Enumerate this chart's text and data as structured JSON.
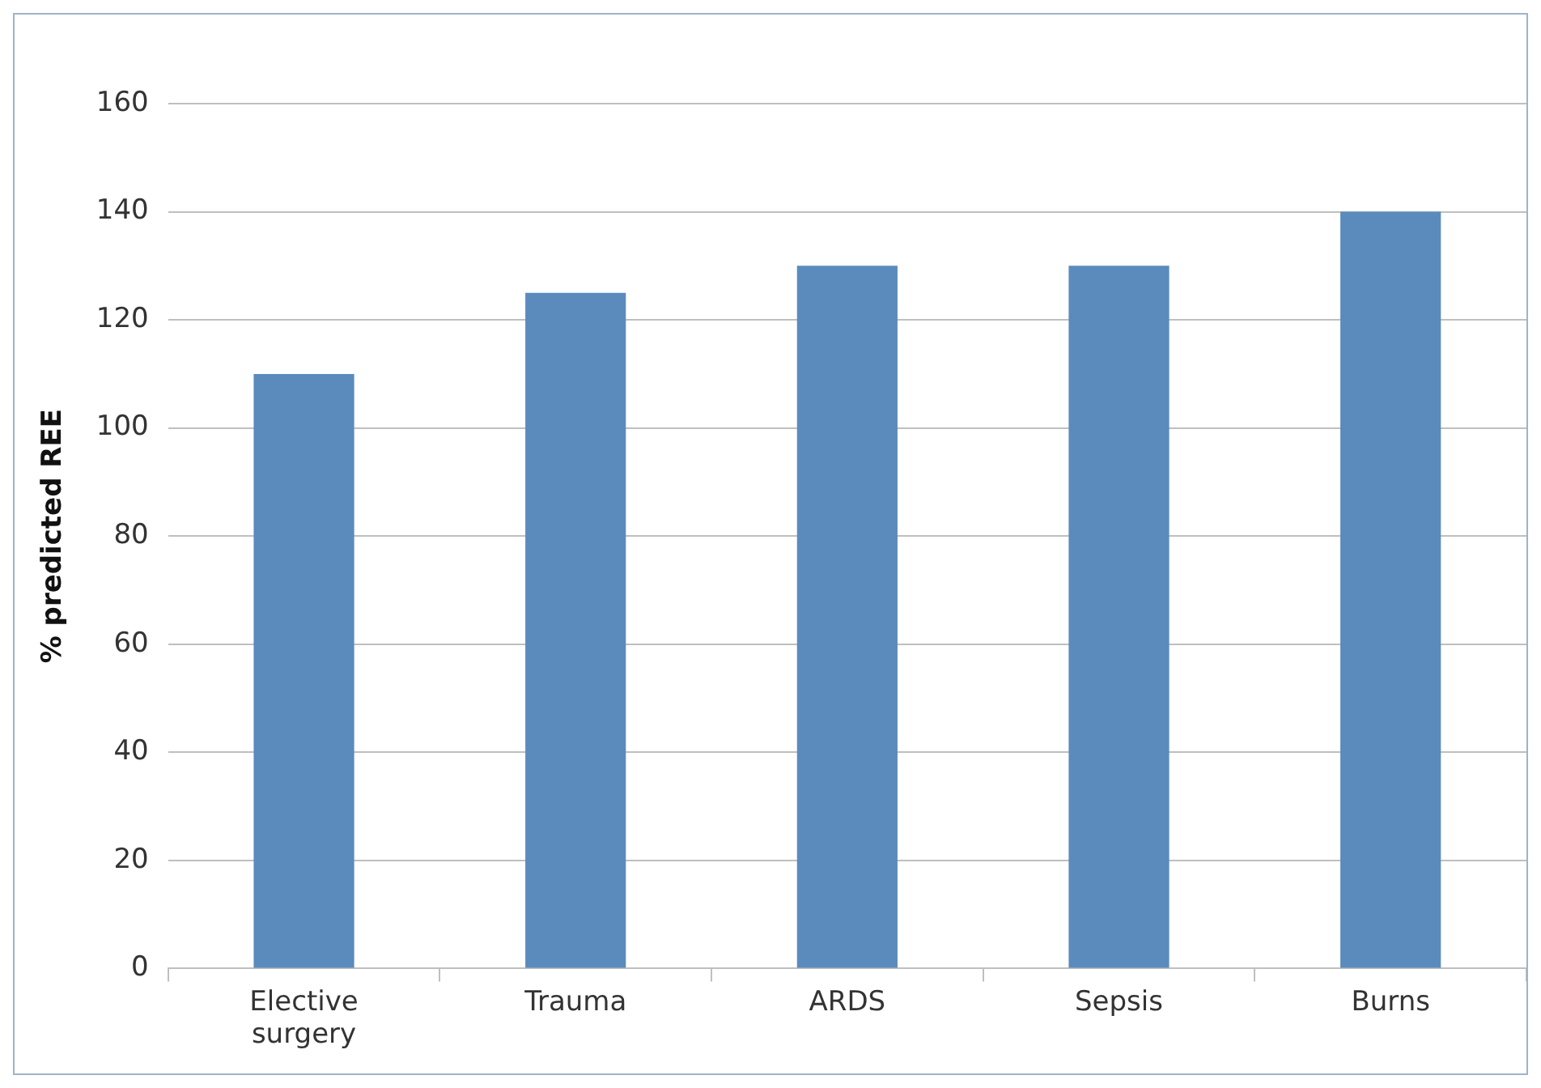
{
  "chart_data": {
    "type": "bar",
    "ylabel": "% predicted REE",
    "categories": [
      "Elective surgery",
      "Trauma",
      "ARDS",
      "Sepsis",
      "Burns"
    ],
    "values": [
      110,
      125,
      130,
      130,
      140
    ],
    "color": "#5b8bbd",
    "ylim": [
      0,
      160
    ],
    "yticks": [
      0,
      20,
      40,
      60,
      80,
      100,
      120,
      140,
      160
    ],
    "grid": "y"
  }
}
